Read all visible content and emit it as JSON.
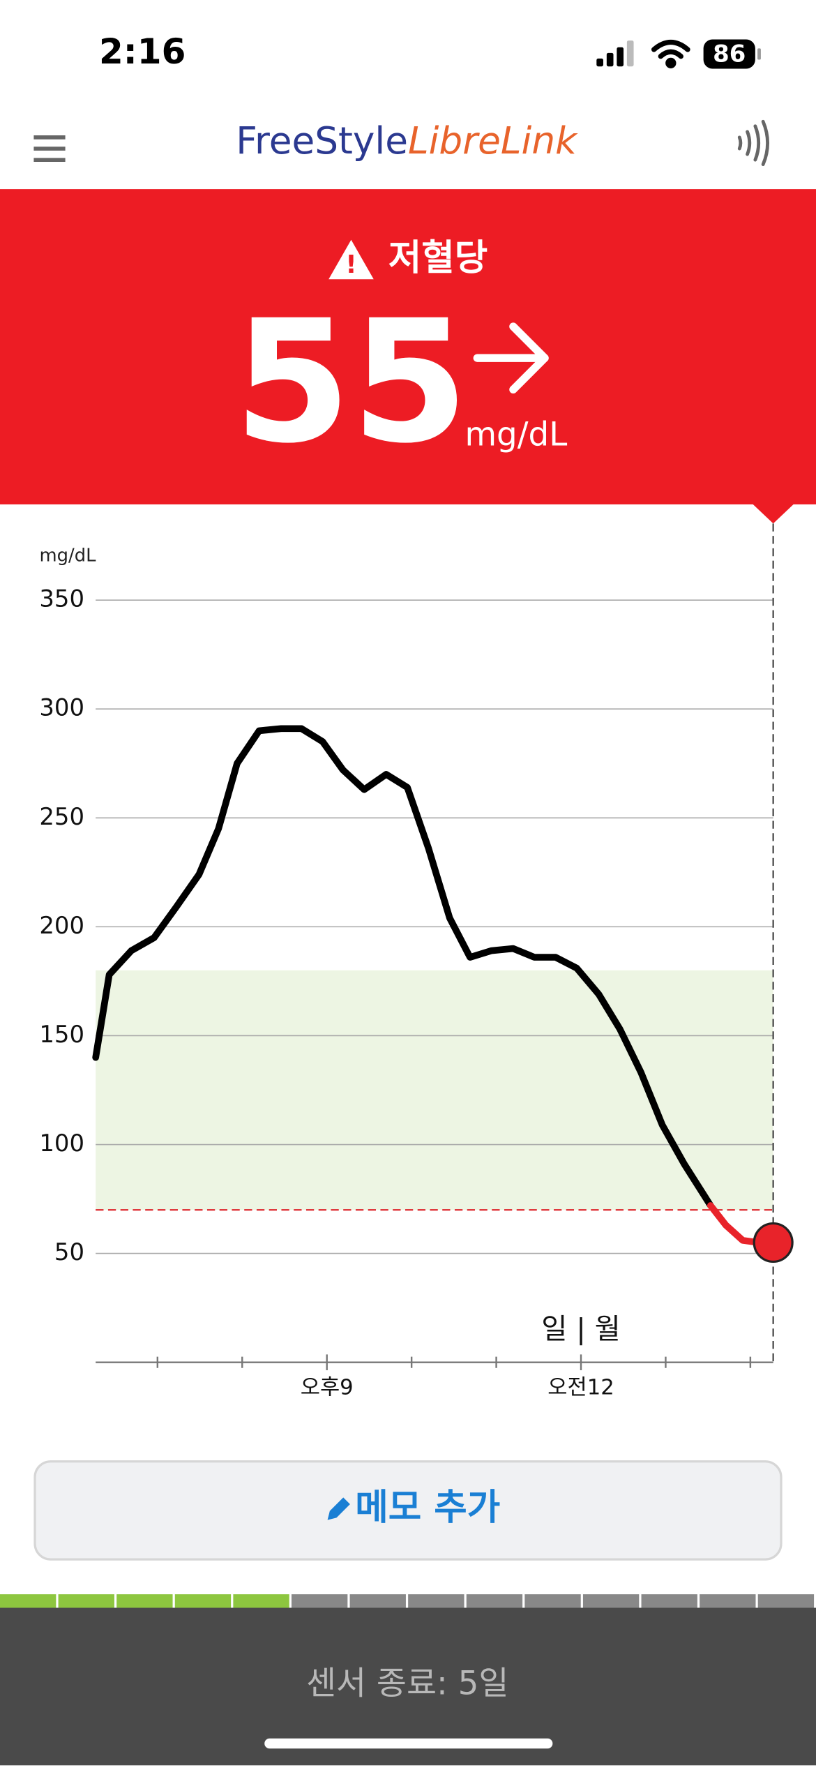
{
  "status_bar": {
    "time": "2:16",
    "battery": "86"
  },
  "header": {
    "logo_part1": "FreeStyle",
    "logo_part2": "LibreLink"
  },
  "alert": {
    "title": "저혈당",
    "value": "55",
    "unit": "mg/dL"
  },
  "chart_data": {
    "type": "line",
    "y_label": "mg/dL",
    "xlim": [
      18.27,
      26.27
    ],
    "xticks": [
      {
        "value": 21,
        "label": "오후9"
      },
      {
        "value": 24,
        "label": "오전12"
      }
    ],
    "x_minor_ticks": [
      19,
      20,
      22,
      23,
      25,
      26
    ],
    "ylim": [
      0,
      350
    ],
    "yticks": [
      50,
      100,
      150,
      200,
      250,
      300,
      350
    ],
    "grid": true,
    "target_range": [
      70,
      180
    ],
    "target_color": "#edf5e3",
    "low_threshold": 70,
    "low_color": "#e03a3e",
    "x": [
      18.27,
      18.43,
      18.69,
      18.96,
      19.22,
      19.49,
      19.72,
      19.94,
      20.2,
      20.46,
      20.7,
      20.95,
      21.19,
      21.44,
      21.7,
      21.95,
      22.2,
      22.45,
      22.69,
      22.94,
      23.2,
      23.45,
      23.7,
      23.95,
      24.21,
      24.46,
      24.71,
      24.96,
      25.22,
      25.53,
      25.71,
      25.91,
      26.1,
      26.27
    ],
    "series": [
      {
        "color": "#000000",
        "values": [
          140,
          178,
          189,
          195,
          209,
          224,
          245,
          275,
          290,
          291,
          291,
          285,
          272,
          263,
          270,
          264,
          236,
          204,
          186,
          189,
          190,
          186,
          186,
          181,
          169,
          153,
          133,
          109,
          91,
          72,
          null,
          null,
          null,
          null
        ]
      },
      {
        "color": "#e8232a",
        "values": [
          null,
          null,
          null,
          null,
          null,
          null,
          null,
          null,
          null,
          null,
          null,
          null,
          null,
          null,
          null,
          null,
          null,
          null,
          null,
          null,
          null,
          null,
          null,
          null,
          null,
          null,
          null,
          null,
          null,
          72,
          63,
          56,
          55,
          55
        ]
      }
    ],
    "annotations": [
      {
        "x": 24,
        "text": "일 | 월"
      }
    ]
  },
  "memo_button": {
    "label": "메모 추가"
  },
  "sensor": {
    "label": "센서 종료: 5일"
  }
}
